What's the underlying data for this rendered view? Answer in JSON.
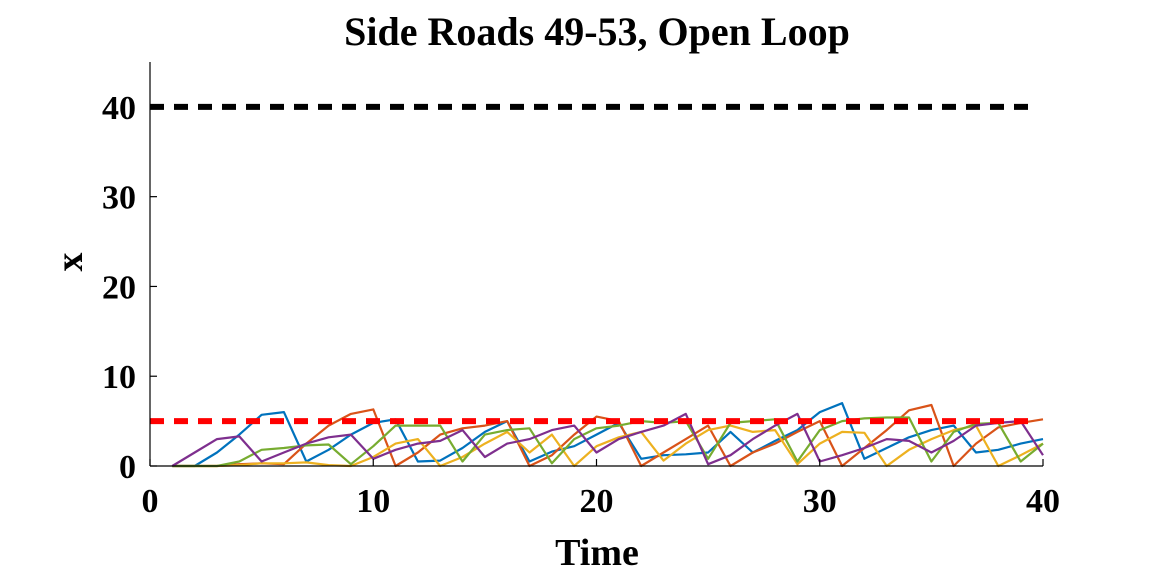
{
  "chart_data": {
    "type": "line",
    "title": "Side Roads 49-53, Open Loop",
    "xlabel": "Time",
    "ylabel": "x",
    "xlim": [
      0,
      40
    ],
    "ylim": [
      0,
      45
    ],
    "xticks": [
      0,
      10,
      20,
      30,
      40
    ],
    "yticks": [
      0,
      10,
      20,
      30,
      40
    ],
    "grid": false,
    "legend": "none",
    "reference_lines": [
      {
        "y": 40,
        "style": "dashed",
        "color": "#000000"
      },
      {
        "y": 5,
        "style": "dashed",
        "color": "#ff0000"
      }
    ],
    "series": [
      {
        "color": "#0072bd",
        "x": [
          1,
          2,
          3,
          4,
          5,
          6,
          7,
          8,
          9,
          10,
          11,
          12,
          13,
          14,
          15,
          16,
          17,
          18,
          19,
          20,
          21,
          22,
          23,
          24,
          25,
          26,
          27,
          28,
          29,
          30,
          31,
          32,
          33,
          34,
          35,
          36,
          37,
          38,
          39,
          40
        ],
        "y": [
          0,
          0,
          1.5,
          3.5,
          5.7,
          6.0,
          0.5,
          1.8,
          3.5,
          4.8,
          5.2,
          0.5,
          0.6,
          2,
          3.8,
          5,
          0.5,
          1.6,
          2.2,
          3.5,
          4.8,
          0.8,
          1.2,
          1.3,
          1.5,
          3.8,
          1.5,
          2.8,
          4,
          6,
          7,
          0.8,
          2,
          3.2,
          4,
          4.5,
          1.5,
          1.8,
          2.5,
          3
        ]
      },
      {
        "color": "#d95319",
        "x": [
          1,
          2,
          3,
          4,
          5,
          6,
          7,
          8,
          9,
          10,
          11,
          12,
          13,
          14,
          15,
          16,
          17,
          18,
          19,
          20,
          21,
          22,
          23,
          24,
          25,
          26,
          27,
          28,
          29,
          30,
          31,
          32,
          33,
          34,
          35,
          36,
          37,
          38,
          39,
          40
        ],
        "y": [
          0,
          0,
          0,
          0.2,
          0.3,
          0.2,
          2.5,
          4.5,
          5.8,
          6.3,
          0,
          1.5,
          3.5,
          4.2,
          4.5,
          5,
          0,
          1.2,
          3.5,
          5.5,
          5,
          0,
          1.5,
          3,
          4.5,
          0,
          1.5,
          2.5,
          3.8,
          5,
          0,
          2,
          4,
          6.2,
          6.8,
          0,
          2.5,
          4.3,
          4.8,
          5.2
        ]
      },
      {
        "color": "#edb120",
        "x": [
          1,
          2,
          3,
          4,
          5,
          6,
          7,
          8,
          9,
          10,
          11,
          12,
          13,
          14,
          15,
          16,
          17,
          18,
          19,
          20,
          21,
          22,
          23,
          24,
          25,
          26,
          27,
          28,
          29,
          30,
          31,
          32,
          33,
          34,
          35,
          36,
          37,
          38,
          39,
          40
        ],
        "y": [
          0,
          0,
          0,
          0.1,
          0.3,
          0.3,
          0.4,
          0.1,
          0,
          1,
          2.5,
          3,
          0,
          1,
          2.5,
          3.8,
          1.5,
          3.5,
          0,
          2.2,
          3.2,
          3.8,
          0.6,
          2.5,
          4,
          4.5,
          3.8,
          4,
          0.2,
          2.5,
          3.8,
          3.7,
          0,
          1.8,
          3,
          4,
          4.5,
          0,
          1.2,
          2.5
        ]
      },
      {
        "color": "#77ac30",
        "x": [
          1,
          2,
          3,
          4,
          5,
          6,
          7,
          8,
          9,
          10,
          11,
          12,
          13,
          14,
          15,
          16,
          17,
          18,
          19,
          20,
          21,
          22,
          23,
          24,
          25,
          26,
          27,
          28,
          29,
          30,
          31,
          32,
          33,
          34,
          35,
          36,
          37,
          38,
          39,
          40
        ],
        "y": [
          0,
          0,
          0,
          0.5,
          1.8,
          2,
          2.3,
          2.4,
          0.2,
          2.2,
          4.5,
          4.5,
          4.5,
          0.5,
          3.5,
          4,
          4.2,
          0.3,
          3,
          4.2,
          4.5,
          5,
          4.8,
          5,
          0.8,
          4.8,
          5,
          5.2,
          0.5,
          4,
          5,
          5.3,
          5.4,
          5.4,
          0.5,
          3.8,
          4.7,
          4.8,
          0.5,
          2.5
        ]
      },
      {
        "color": "#7e2f8e",
        "x": [
          1,
          2,
          3,
          4,
          5,
          6,
          7,
          8,
          9,
          10,
          11,
          12,
          13,
          14,
          15,
          16,
          17,
          18,
          19,
          20,
          21,
          22,
          23,
          24,
          25,
          26,
          27,
          28,
          29,
          30,
          31,
          32,
          33,
          34,
          35,
          36,
          37,
          38,
          39,
          40
        ],
        "y": [
          0,
          1.5,
          3,
          3.3,
          0.5,
          1.5,
          2.5,
          3.2,
          3.5,
          0.8,
          1.8,
          2.5,
          2.8,
          4,
          1,
          2.5,
          3,
          4,
          4.5,
          1.5,
          3,
          3.8,
          4.5,
          5.8,
          0.2,
          1.2,
          3,
          4.5,
          5.8,
          0.5,
          1.2,
          2,
          3,
          2.8,
          1.5,
          2.8,
          4.5,
          4.8,
          5,
          1.2
        ]
      }
    ]
  }
}
